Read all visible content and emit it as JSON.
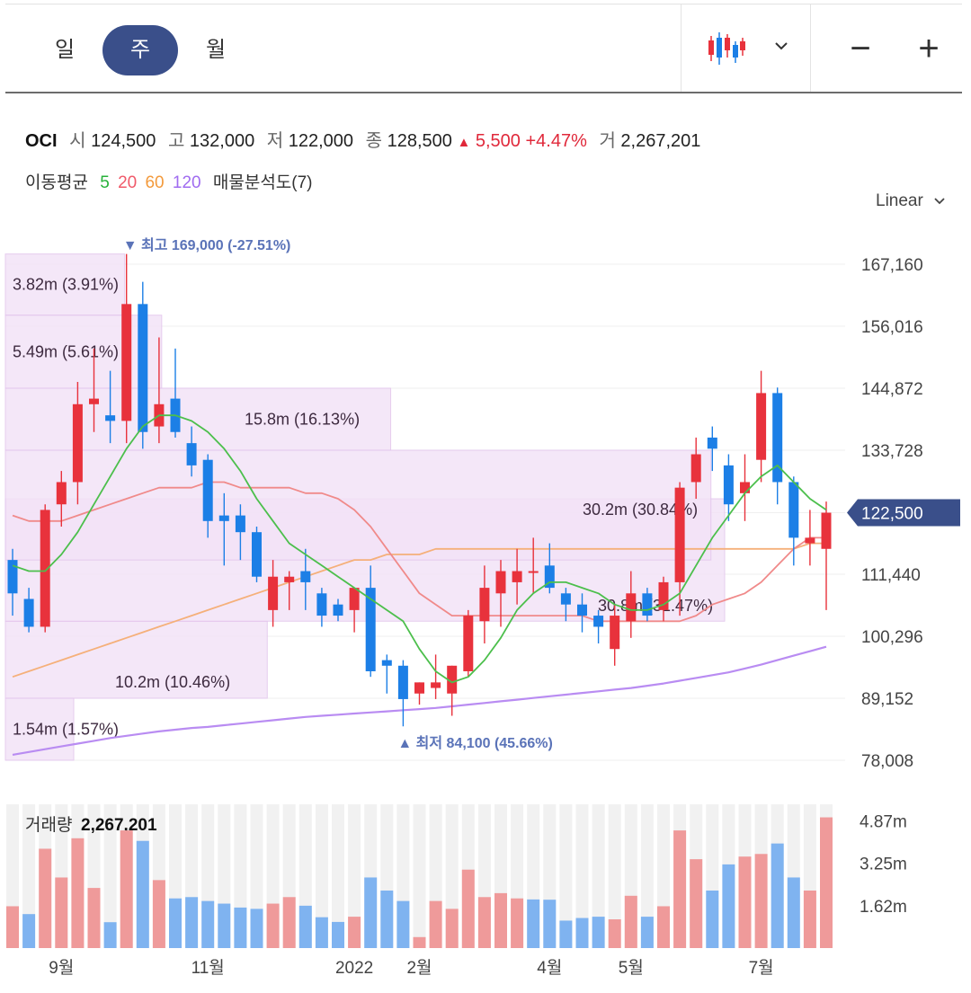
{
  "toolbar": {
    "periods": [
      {
        "label": "일",
        "active": false
      },
      {
        "label": "주",
        "active": true
      },
      {
        "label": "월",
        "active": false
      }
    ],
    "chart_type_icon": "candlestick-icon",
    "dropdown_icon": "chevron-down-icon",
    "zoom_out_label": "−",
    "zoom_in_label": "+"
  },
  "quote": {
    "name": "OCI",
    "open_label": "시",
    "open": "124,500",
    "high_label": "고",
    "high": "132,000",
    "low_label": "저",
    "low": "122,000",
    "close_label": "종",
    "close": "128,500",
    "change_arrow": "▲",
    "change": "5,500",
    "change_pct": "+4.47%",
    "volume_label": "거",
    "volume": "2,267,201"
  },
  "ma_legend": {
    "label": "이동평균",
    "periods": [
      {
        "text": "5",
        "color": "#27b23a"
      },
      {
        "text": "20",
        "color": "#f05a6a"
      },
      {
        "text": "60",
        "color": "#f39a3c"
      },
      {
        "text": "120",
        "color": "#a06cf0"
      }
    ],
    "volume_profile_label": "매물분석도(7)"
  },
  "scale_selector": "Linear",
  "colors": {
    "up": "#e8323c",
    "down": "#1c7fe6",
    "ma5": "#4cbf4c",
    "ma20": "#f08a8a",
    "ma60": "#f5b07a",
    "ma120": "#b98cf2",
    "profile": "#f3e3f7",
    "profile_border": "#e2c4ec",
    "price_badge": "#3a4f8a",
    "vol_up": "#ef9a9a",
    "vol_down": "#7fb3f0",
    "vol_bg": "#f1f1f1"
  },
  "chart_data": {
    "type": "candlestick",
    "y_range": [
      78008,
      167160
    ],
    "y_ticks": [
      "167,160",
      "156,016",
      "144,872",
      "133,728",
      "122,500",
      "111,440",
      "100,296",
      "89,152",
      "78,008"
    ],
    "y_tick_values": [
      167160,
      156016,
      144872,
      133728,
      122500,
      111440,
      100296,
      89152,
      78008
    ],
    "current_price": "122,500",
    "current_price_value": 122500,
    "x_labels": [
      {
        "text": "9월",
        "index": 3
      },
      {
        "text": "11월",
        "index": 12
      },
      {
        "text": "2022",
        "index": 21
      },
      {
        "text": "2월",
        "index": 25
      },
      {
        "text": "4월",
        "index": 33
      },
      {
        "text": "5월",
        "index": 38
      },
      {
        "text": "7월",
        "index": 46
      }
    ],
    "candles": [
      {
        "o": 114,
        "h": 116,
        "l": 104,
        "c": 108
      },
      {
        "o": 107,
        "h": 109,
        "l": 101,
        "c": 102
      },
      {
        "o": 102,
        "h": 124,
        "l": 101,
        "c": 123
      },
      {
        "o": 124,
        "h": 130,
        "l": 120,
        "c": 128
      },
      {
        "o": 128,
        "h": 146,
        "l": 124,
        "c": 142
      },
      {
        "o": 142,
        "h": 152,
        "l": 137,
        "c": 143
      },
      {
        "o": 140,
        "h": 148,
        "l": 135,
        "c": 139
      },
      {
        "o": 139,
        "h": 169,
        "l": 135,
        "c": 160
      },
      {
        "o": 160,
        "h": 164,
        "l": 134,
        "c": 137
      },
      {
        "o": 138,
        "h": 154,
        "l": 135,
        "c": 142
      },
      {
        "o": 143,
        "h": 152,
        "l": 136,
        "c": 137
      },
      {
        "o": 135,
        "h": 138,
        "l": 129,
        "c": 131
      },
      {
        "o": 132,
        "h": 133,
        "l": 118,
        "c": 121
      },
      {
        "o": 122,
        "h": 126,
        "l": 113,
        "c": 121
      },
      {
        "o": 122,
        "h": 124,
        "l": 114,
        "c": 119
      },
      {
        "o": 119,
        "h": 120,
        "l": 110,
        "c": 111
      },
      {
        "o": 105,
        "h": 114,
        "l": 102,
        "c": 111
      },
      {
        "o": 110,
        "h": 112,
        "l": 105,
        "c": 111
      },
      {
        "o": 112,
        "h": 116,
        "l": 105,
        "c": 110
      },
      {
        "o": 108,
        "h": 109,
        "l": 102,
        "c": 104
      },
      {
        "o": 106,
        "h": 107,
        "l": 103,
        "c": 104
      },
      {
        "o": 105,
        "h": 109,
        "l": 101,
        "c": 109
      },
      {
        "o": 109,
        "h": 113,
        "l": 93,
        "c": 94
      },
      {
        "o": 96,
        "h": 97,
        "l": 90,
        "c": 95
      },
      {
        "o": 95,
        "h": 96,
        "l": 84.1,
        "c": 89
      },
      {
        "o": 90,
        "h": 92,
        "l": 88,
        "c": 92
      },
      {
        "o": 91,
        "h": 97,
        "l": 89,
        "c": 92
      },
      {
        "o": 90,
        "h": 95,
        "l": 86,
        "c": 95
      },
      {
        "o": 94,
        "h": 105,
        "l": 93,
        "c": 104
      },
      {
        "o": 103,
        "h": 113,
        "l": 99,
        "c": 109
      },
      {
        "o": 108,
        "h": 114,
        "l": 102,
        "c": 112
      },
      {
        "o": 110,
        "h": 116,
        "l": 106,
        "c": 112
      },
      {
        "o": 112,
        "h": 118,
        "l": 108,
        "c": 112
      },
      {
        "o": 113,
        "h": 117,
        "l": 108,
        "c": 109
      },
      {
        "o": 108,
        "h": 109,
        "l": 103,
        "c": 106
      },
      {
        "o": 106,
        "h": 108,
        "l": 101,
        "c": 104
      },
      {
        "o": 104,
        "h": 105,
        "l": 99,
        "c": 102
      },
      {
        "o": 98,
        "h": 106,
        "l": 95,
        "c": 104
      },
      {
        "o": 103,
        "h": 112,
        "l": 100,
        "c": 108
      },
      {
        "o": 108,
        "h": 109,
        "l": 103,
        "c": 104
      },
      {
        "o": 105,
        "h": 111,
        "l": 103,
        "c": 110
      },
      {
        "o": 110,
        "h": 128,
        "l": 104,
        "c": 127
      },
      {
        "o": 128,
        "h": 136,
        "l": 125,
        "c": 133
      },
      {
        "o": 136,
        "h": 138,
        "l": 130,
        "c": 134
      },
      {
        "o": 131,
        "h": 133,
        "l": 121,
        "c": 124
      },
      {
        "o": 126,
        "h": 133,
        "l": 121,
        "c": 128
      },
      {
        "o": 132,
        "h": 148,
        "l": 128,
        "c": 144
      },
      {
        "o": 144,
        "h": 145,
        "l": 124,
        "c": 128
      },
      {
        "o": 128,
        "h": 129,
        "l": 113,
        "c": 118
      },
      {
        "o": 117,
        "h": 123,
        "l": 113,
        "c": 118
      },
      {
        "o": 116,
        "h": 124.5,
        "l": 105,
        "c": 122.5
      }
    ],
    "ma5": [
      113,
      112,
      112,
      115,
      119,
      124,
      129,
      134,
      138,
      140,
      140,
      139,
      137,
      134,
      130,
      125,
      121,
      117,
      115,
      113,
      111,
      109,
      107,
      105,
      103,
      98,
      94,
      92,
      93,
      96,
      100,
      105,
      108,
      110,
      110,
      109,
      108,
      106,
      105,
      105,
      106,
      108,
      113,
      118,
      122,
      126,
      129,
      131,
      128,
      125,
      123
    ],
    "ma20": [
      122,
      121,
      121,
      121,
      122,
      123,
      124,
      125,
      126,
      127,
      127,
      127,
      128,
      128,
      127,
      127,
      127,
      127,
      126,
      126,
      125,
      123,
      120,
      116,
      112,
      108,
      106,
      104,
      104,
      104,
      104,
      104,
      104,
      104,
      104,
      104,
      103,
      103,
      103,
      103,
      103,
      103,
      104,
      106,
      107,
      108,
      110,
      113,
      116,
      118,
      118
    ],
    "ma60": [
      93,
      94,
      95,
      96,
      97,
      98,
      99,
      100,
      101,
      102,
      103,
      104,
      105,
      106,
      107,
      108,
      109,
      110,
      111,
      112,
      113,
      114,
      114,
      115,
      115,
      115,
      116,
      116,
      116,
      116,
      116,
      116,
      116,
      116,
      116,
      116,
      116,
      116,
      116,
      116,
      116,
      116,
      116,
      116,
      116,
      116,
      116,
      116,
      116,
      117,
      117
    ],
    "ma120": [
      79,
      79.5,
      80,
      80.5,
      81,
      81.5,
      82,
      82.4,
      82.8,
      83.2,
      83.5,
      83.8,
      84,
      84.3,
      84.6,
      84.9,
      85.2,
      85.5,
      85.8,
      86,
      86.2,
      86.4,
      86.6,
      86.8,
      87,
      87.2,
      87.4,
      87.7,
      88,
      88.3,
      88.6,
      88.9,
      89.2,
      89.5,
      89.8,
      90.1,
      90.4,
      90.7,
      91,
      91.4,
      91.8,
      92.3,
      92.8,
      93.3,
      93.8,
      94.5,
      95.2,
      96,
      96.8,
      97.6,
      98.4
    ],
    "volume_label": "거래량",
    "volume_total": "2,267,201",
    "volume_ticks": [
      "4.87m",
      "3.25m",
      "1.62m"
    ],
    "volume_tick_values": [
      4.87,
      3.25,
      1.62
    ],
    "volume_max": 5.5,
    "volumes": [
      1.6,
      1.3,
      3.8,
      2.7,
      4.2,
      2.3,
      0.99,
      4.5,
      4.1,
      2.6,
      1.9,
      1.95,
      1.8,
      1.7,
      1.55,
      1.5,
      1.7,
      1.95,
      1.62,
      1.18,
      1.0,
      1.2,
      2.7,
      2.2,
      1.8,
      0.42,
      1.8,
      1.5,
      3.0,
      1.95,
      2.1,
      1.9,
      1.86,
      1.85,
      1.05,
      1.15,
      1.2,
      1.1,
      2.0,
      1.2,
      1.6,
      4.5,
      3.4,
      2.2,
      3.2,
      3.5,
      3.6,
      4.0,
      2.7,
      2.2,
      5.0
    ],
    "volume_up": [
      true,
      false,
      true,
      true,
      true,
      true,
      false,
      true,
      false,
      true,
      false,
      false,
      false,
      false,
      false,
      false,
      true,
      true,
      false,
      false,
      false,
      true,
      false,
      false,
      false,
      true,
      true,
      true,
      true,
      true,
      true,
      true,
      false,
      false,
      false,
      false,
      false,
      true,
      true,
      false,
      true,
      true,
      true,
      false,
      false,
      true,
      true,
      false,
      false,
      true,
      true
    ],
    "volume_profile": [
      {
        "low": 78.008,
        "high": 89.152,
        "label": "1.54m (1.57%)"
      },
      {
        "low": 89.152,
        "high": 103.0,
        "label": "10.2m (10.46%)"
      },
      {
        "low": 103.0,
        "high": 125.0,
        "label": "30.8m (31.47%)"
      },
      {
        "low": 114.0,
        "high": 133.728,
        "label": "30.2m (30.84%)"
      },
      {
        "low": 133.728,
        "high": 144.872,
        "label": "15.8m (16.13%)"
      },
      {
        "low": 144.872,
        "high": 158.0,
        "label": "5.49m (5.61%)"
      },
      {
        "low": 158.0,
        "high": 169.0,
        "label": "3.82m (3.91%)"
      }
    ],
    "annotations": {
      "high": {
        "text": "▼ 최고",
        "value": "169,000",
        "pct": "(-27.51%)",
        "index": 7
      },
      "low": {
        "text": "▲ 최저",
        "value": "84,100",
        "pct": "(45.66%)",
        "index": 24
      }
    }
  }
}
